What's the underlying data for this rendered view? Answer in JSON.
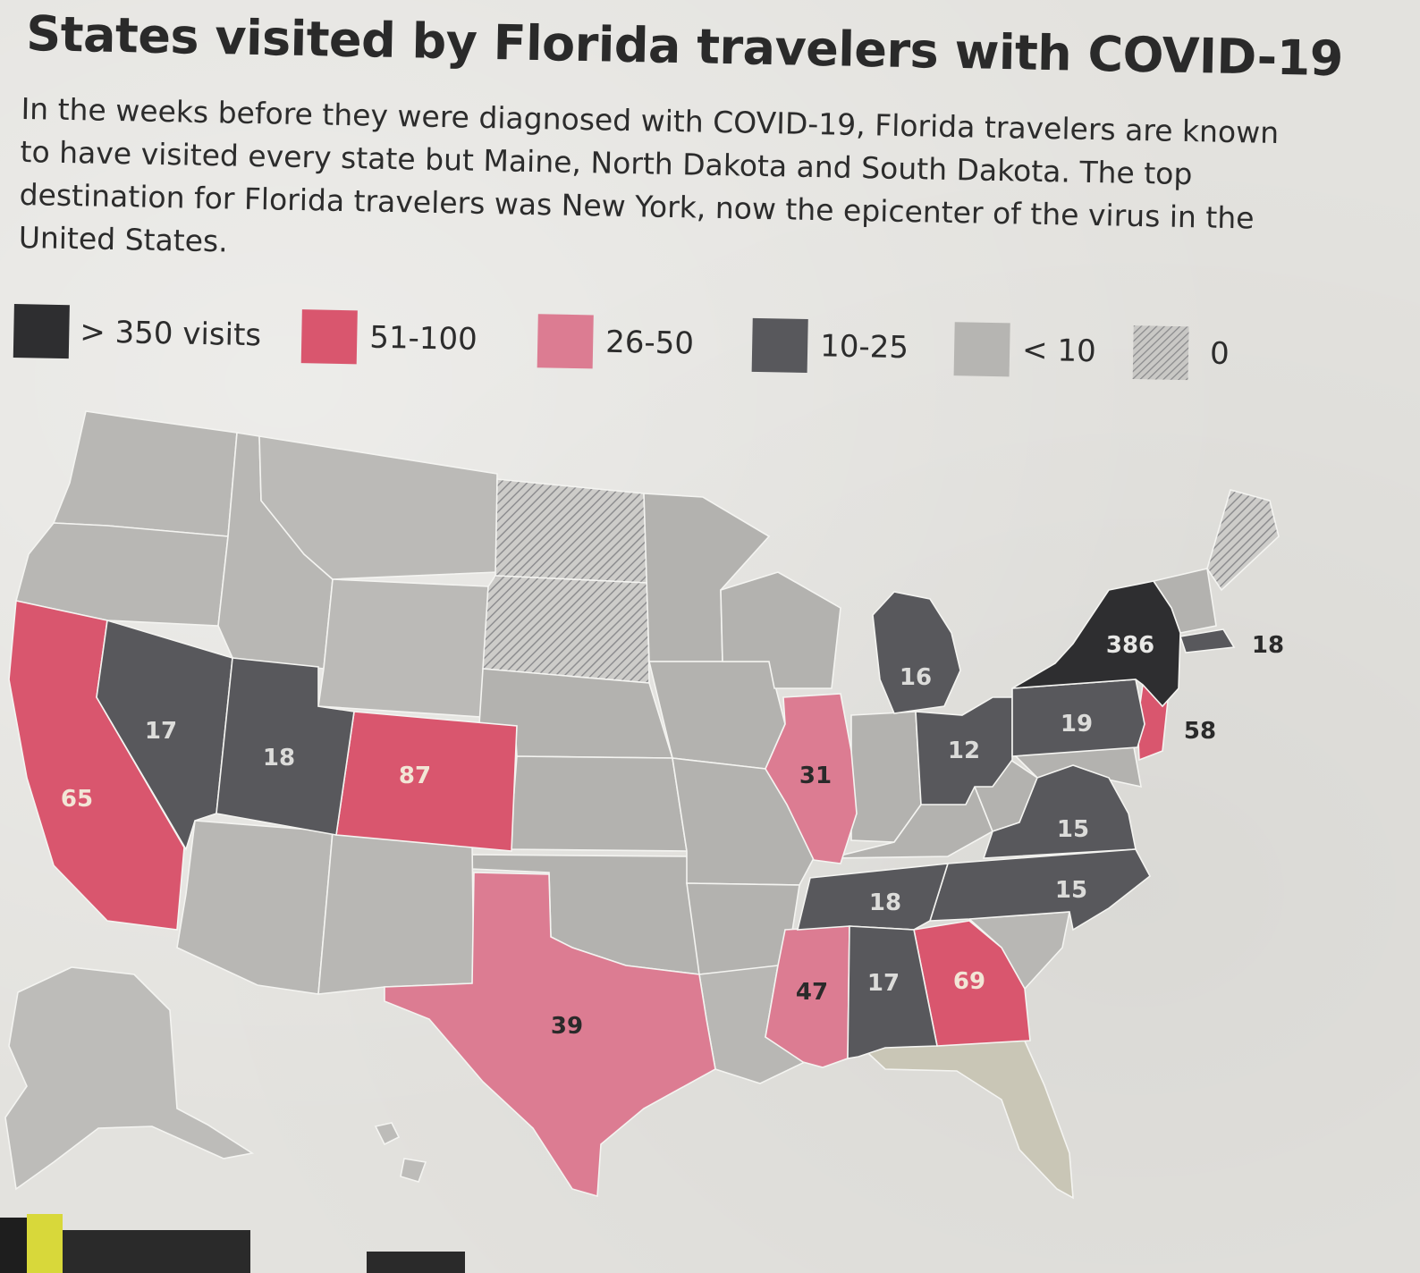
{
  "title": "States visited by Florida travelers with COVID-19",
  "subtitle": "In the weeks before they were diagnosed with COVID-19, Florida travelers are known to have visited every state but Maine, North Dakota and South Dakota. The top destination for Florida travelers was New York, now the epicenter of the virus in the United States.",
  "legend": [
    {
      "label": "> 350 visits",
      "fill": "#2e2e30"
    },
    {
      "label": "51-100",
      "fill": "#d9566e"
    },
    {
      "label": "26-50",
      "fill": "#dc7c92"
    },
    {
      "label": "10-25",
      "fill": "#58585c"
    },
    {
      "label": "< 10",
      "fill": "#b6b5b2"
    },
    {
      "label": "0",
      "fill": "hatch"
    }
  ],
  "state_labels": [
    {
      "state": "New York",
      "value": "386"
    },
    {
      "state": "Colorado",
      "value": "87"
    },
    {
      "state": "Georgia",
      "value": "69"
    },
    {
      "state": "California",
      "value": "65"
    },
    {
      "state": "New Jersey",
      "value": "58"
    },
    {
      "state": "Mississippi",
      "value": "47"
    },
    {
      "state": "Texas",
      "value": "39"
    },
    {
      "state": "Illinois",
      "value": "31"
    },
    {
      "state": "Pennsylvania",
      "value": "19"
    },
    {
      "state": "Utah",
      "value": "18"
    },
    {
      "state": "Tennessee",
      "value": "18"
    },
    {
      "state": "Massachusetts",
      "value": "18"
    },
    {
      "state": "Nevada",
      "value": "17"
    },
    {
      "state": "Alabama",
      "value": "17"
    },
    {
      "state": "Michigan",
      "value": "16"
    },
    {
      "state": "Virginia",
      "value": "15"
    },
    {
      "state": "North Carolina",
      "value": "15"
    },
    {
      "state": "Ohio",
      "value": "12"
    }
  ],
  "colors": {
    "high": "#2e2e30",
    "red": "#d9566e",
    "pink": "#dc7c92",
    "dark": "#58585c",
    "light": "#b6b5b2",
    "florida": "#c9c6b6",
    "paper": "#e3e2de"
  }
}
